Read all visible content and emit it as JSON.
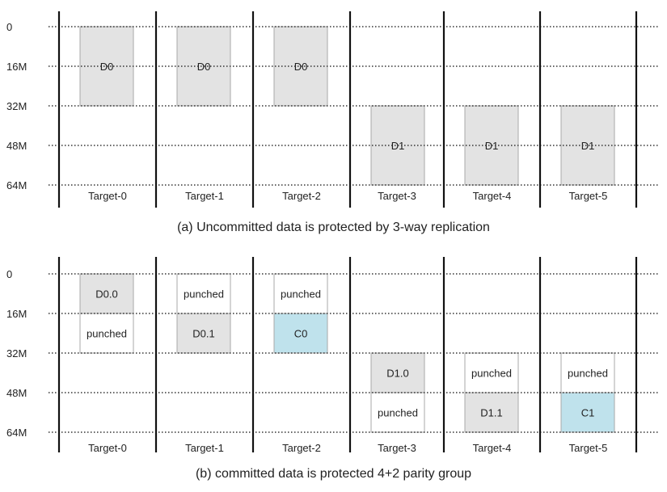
{
  "panels": [
    {
      "caption": "(a) Uncommitted data is protected by 3-way replication",
      "y_labels": [
        "0",
        "16M",
        "32M",
        "48M",
        "64M"
      ],
      "targets": [
        "Target-0",
        "Target-1",
        "Target-2",
        "Target-3",
        "Target-4",
        "Target-5"
      ],
      "blocks": [
        {
          "target": 0,
          "start": 0,
          "end": 2,
          "label": "D0",
          "kind": "data"
        },
        {
          "target": 1,
          "start": 0,
          "end": 2,
          "label": "D0",
          "kind": "data"
        },
        {
          "target": 2,
          "start": 0,
          "end": 2,
          "label": "D0",
          "kind": "data"
        },
        {
          "target": 3,
          "start": 2,
          "end": 4,
          "label": "D1",
          "kind": "data"
        },
        {
          "target": 4,
          "start": 2,
          "end": 4,
          "label": "D1",
          "kind": "data"
        },
        {
          "target": 5,
          "start": 2,
          "end": 4,
          "label": "D1",
          "kind": "data"
        }
      ]
    },
    {
      "caption": "(b) committed data is protected 4+2 parity group",
      "y_labels": [
        "0",
        "16M",
        "32M",
        "48M",
        "64M"
      ],
      "targets": [
        "Target-0",
        "Target-1",
        "Target-2",
        "Target-3",
        "Target-4",
        "Target-5"
      ],
      "blocks": [
        {
          "target": 0,
          "start": 0,
          "end": 1,
          "label": "D0.0",
          "kind": "data"
        },
        {
          "target": 0,
          "start": 1,
          "end": 2,
          "label": "punched",
          "kind": "punched"
        },
        {
          "target": 1,
          "start": 0,
          "end": 1,
          "label": "punched",
          "kind": "punched"
        },
        {
          "target": 1,
          "start": 1,
          "end": 2,
          "label": "D0.1",
          "kind": "data"
        },
        {
          "target": 2,
          "start": 0,
          "end": 1,
          "label": "punched",
          "kind": "punched"
        },
        {
          "target": 2,
          "start": 1,
          "end": 2,
          "label": "C0",
          "kind": "parity"
        },
        {
          "target": 3,
          "start": 2,
          "end": 3,
          "label": "D1.0",
          "kind": "data"
        },
        {
          "target": 3,
          "start": 3,
          "end": 4,
          "label": "punched",
          "kind": "punched"
        },
        {
          "target": 4,
          "start": 2,
          "end": 3,
          "label": "punched",
          "kind": "punched"
        },
        {
          "target": 4,
          "start": 3,
          "end": 4,
          "label": "D1.1",
          "kind": "data"
        },
        {
          "target": 5,
          "start": 2,
          "end": 3,
          "label": "punched",
          "kind": "punched"
        },
        {
          "target": 5,
          "start": 3,
          "end": 4,
          "label": "C1",
          "kind": "parity"
        }
      ]
    }
  ],
  "colors": {
    "data": "#e3e3e3",
    "parity": "#bfe2ec",
    "punched": "#ffffff",
    "border": "#a8a8a8",
    "grid": "#333333",
    "axis": "#111111",
    "text": "#222222"
  }
}
